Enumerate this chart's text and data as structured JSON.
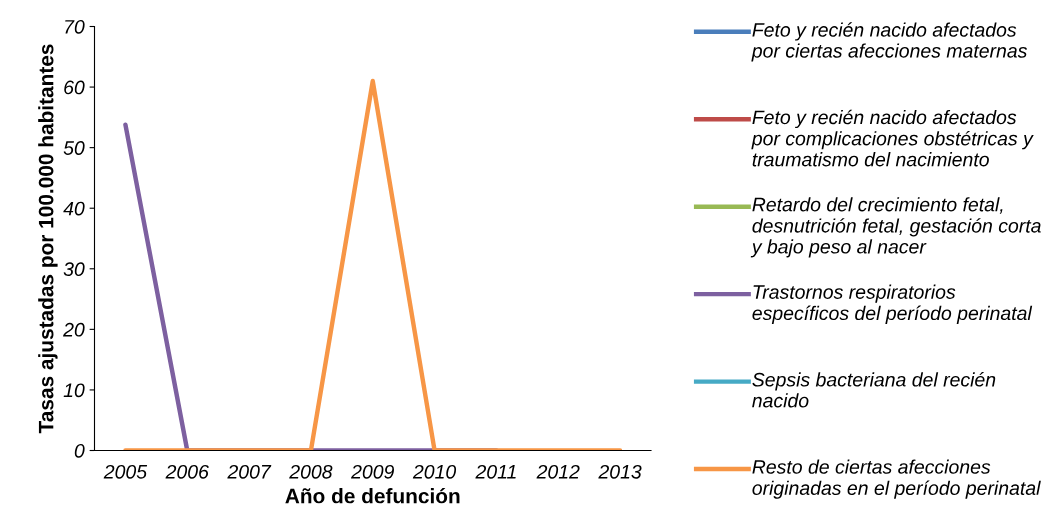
{
  "chart_data": {
    "type": "line",
    "xlabel": "Año de defunción",
    "ylabel": "Tasas ajustadas por 100.000 habitantes",
    "categories": [
      "2005",
      "2006",
      "2007",
      "2008",
      "2009",
      "2010",
      "2011",
      "2012",
      "2013"
    ],
    "ylim": [
      0,
      70
    ],
    "yticks": [
      0,
      10,
      20,
      30,
      40,
      50,
      60,
      70
    ],
    "grid": false,
    "legend": "right",
    "marker": "none",
    "line_style": "solid",
    "series": [
      {
        "name": "Feto y recién nacido afectados por ciertas afecciones maternas",
        "color": "#4a7ebb",
        "values": [
          null,
          null,
          null,
          null,
          null,
          null,
          null,
          null,
          null
        ]
      },
      {
        "name": "Feto y recién nacido afectados por complicaciones obstétricas y traumatismo del nacimiento",
        "color": "#be4b48",
        "values": [
          null,
          null,
          null,
          null,
          null,
          null,
          null,
          null,
          null
        ]
      },
      {
        "name": "Retardo del crecimiento fetal, desnutrición fetal, gestación corta y bajo peso al nacer",
        "color": "#98b954",
        "values": [
          null,
          null,
          null,
          null,
          null,
          null,
          null,
          null,
          null
        ]
      },
      {
        "name": "Trastornos respiratorios específicos del período perinatal",
        "color": "#7d60a0",
        "values": [
          53.8,
          0,
          0,
          0,
          0,
          0,
          0,
          null,
          null
        ]
      },
      {
        "name": "Sepsis bacteriana del recién nacido",
        "color": "#46aac5",
        "values": [
          null,
          null,
          null,
          null,
          null,
          null,
          null,
          null,
          null
        ]
      },
      {
        "name": "Resto de ciertas afecciones originadas en el período perinatal",
        "color": "#f79646",
        "values": [
          0,
          0,
          0,
          0,
          61,
          0,
          0,
          0,
          0
        ]
      }
    ]
  }
}
